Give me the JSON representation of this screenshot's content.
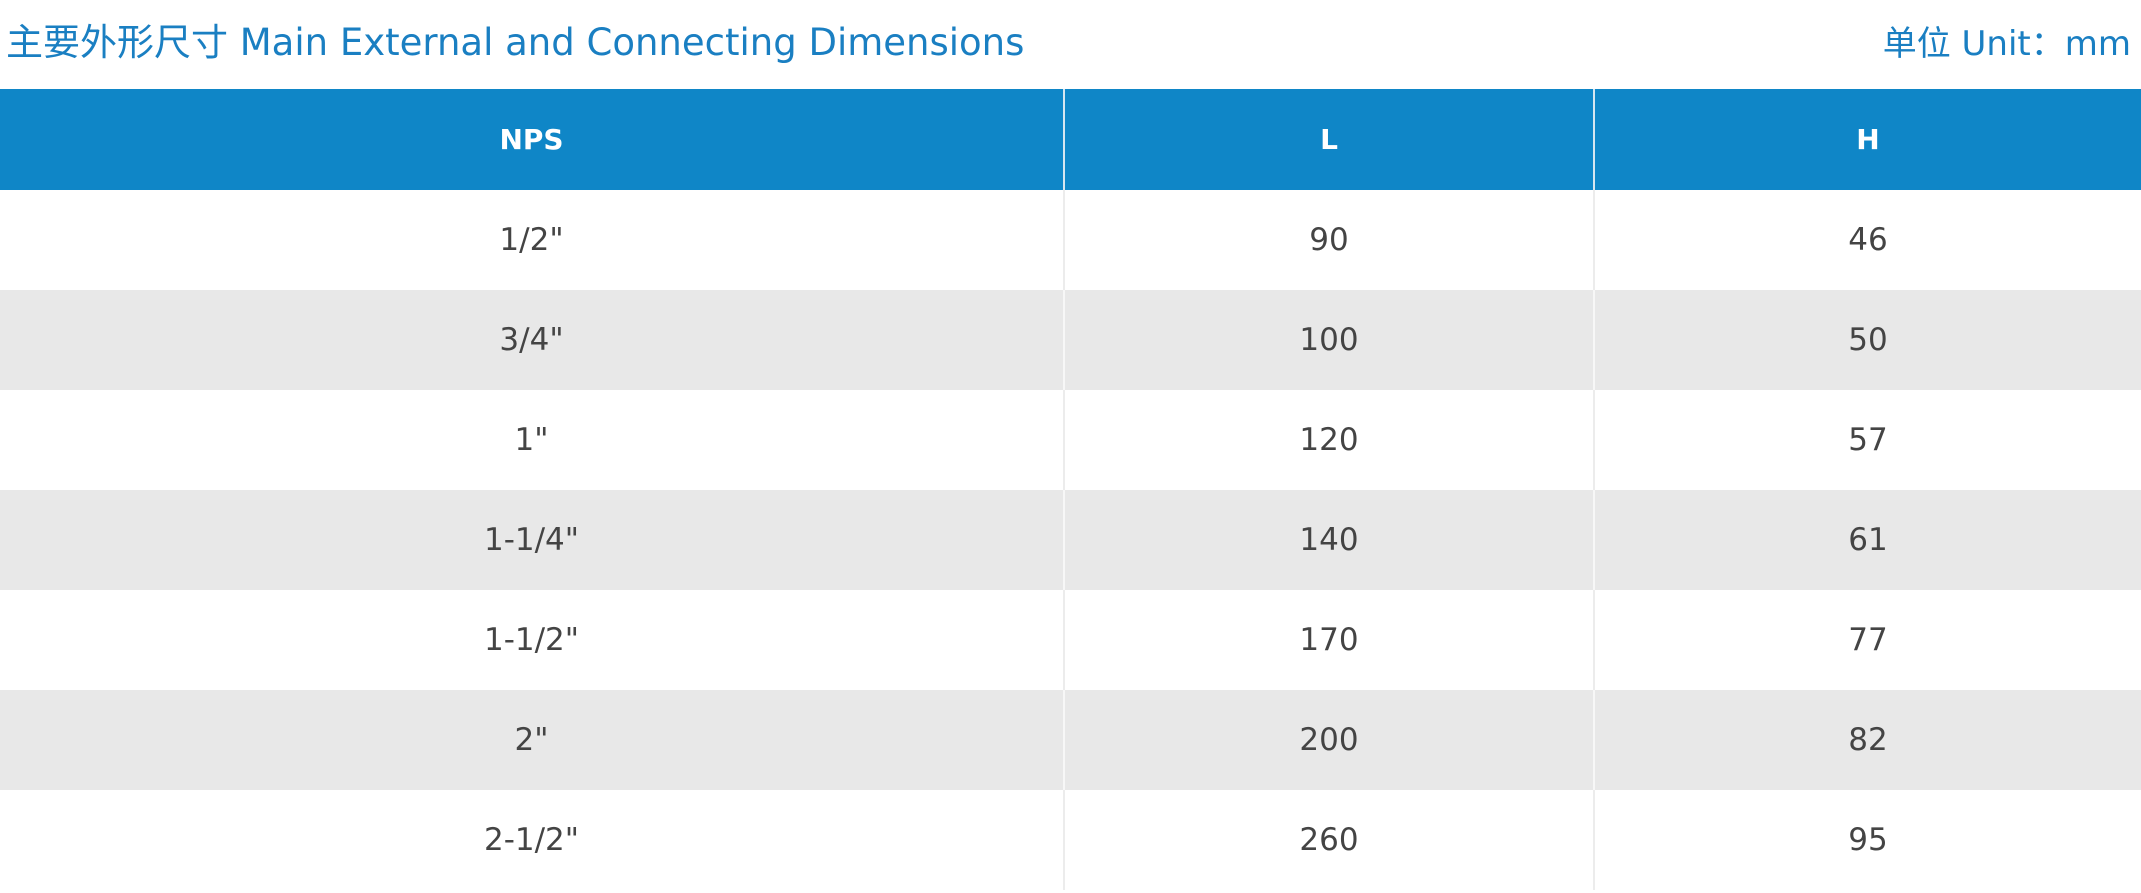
{
  "title": "主要外形尺寸 Main External and Connecting Dimensions",
  "unit_label": "单位 Unit：mm",
  "table": {
    "headers": [
      "NPS",
      "L",
      "H"
    ],
    "rows": [
      [
        "1/2\"",
        "90",
        "46"
      ],
      [
        "3/4\"",
        "100",
        "50"
      ],
      [
        "1\"",
        "120",
        "57"
      ],
      [
        "1-1/4\"",
        "140",
        "61"
      ],
      [
        "1-1/2\"",
        "170",
        "77"
      ],
      [
        "2\"",
        "200",
        "82"
      ],
      [
        "2-1/2\"",
        "260",
        "95"
      ]
    ]
  },
  "colors": {
    "accent": "#1a7fc2",
    "header_bg": "#0f86c7",
    "stripe": "#e8e8e8",
    "text": "#444444"
  }
}
